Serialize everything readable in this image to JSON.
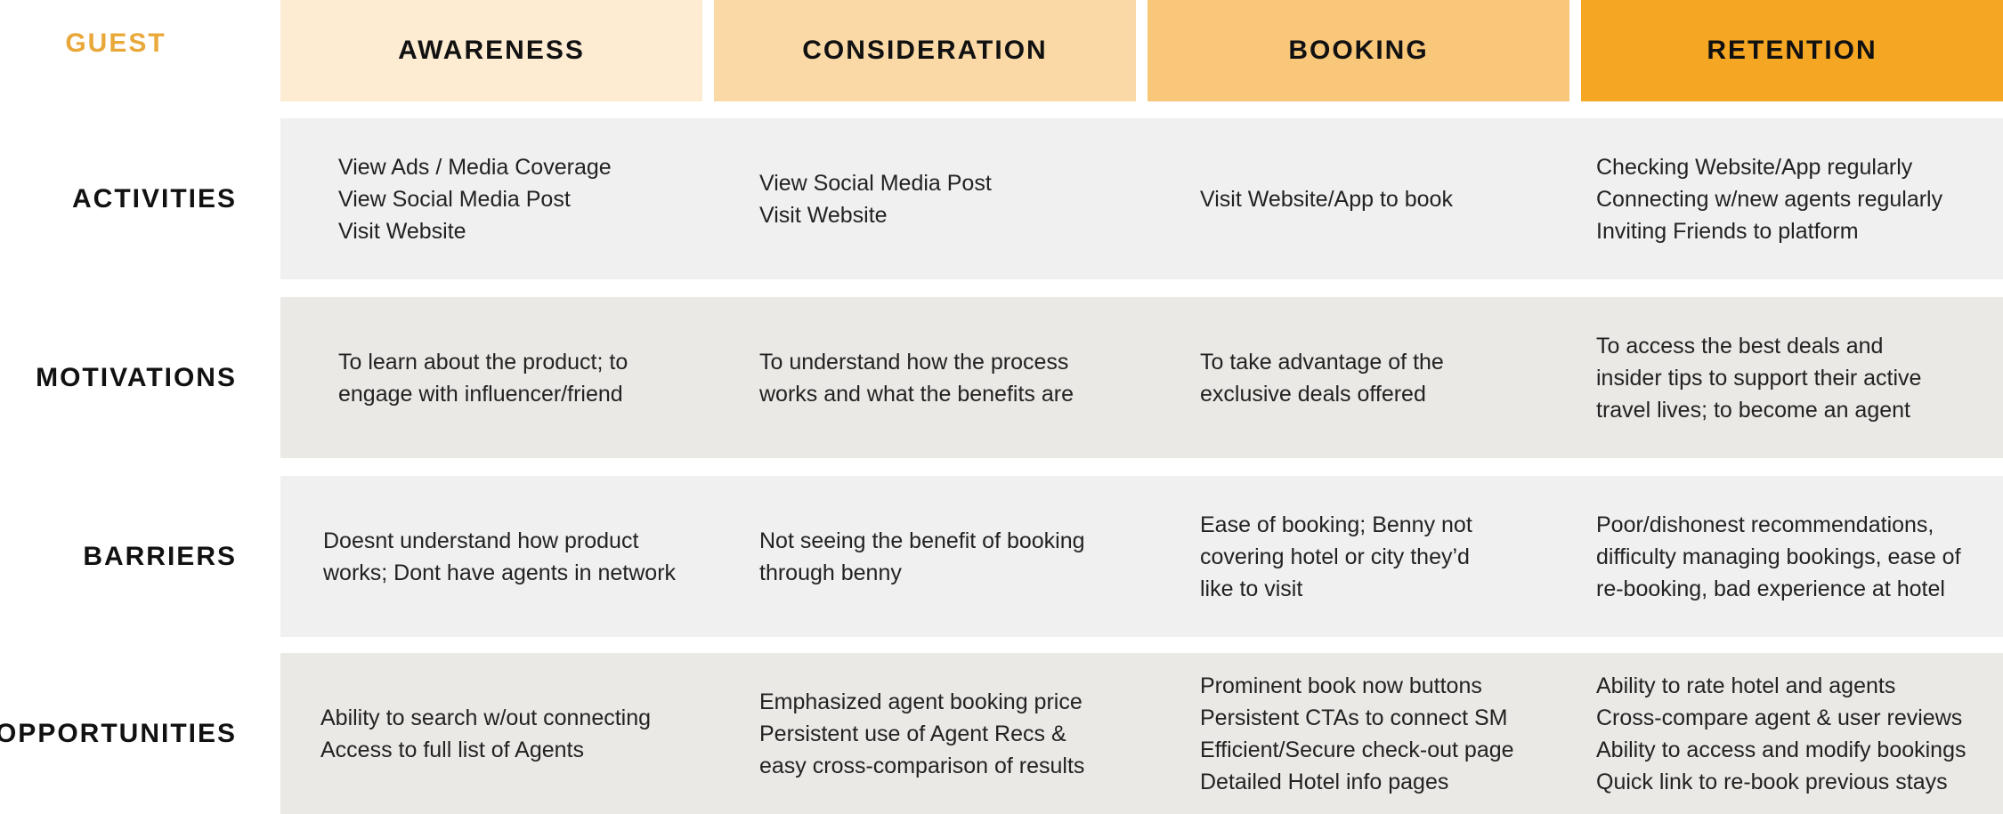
{
  "corner_label": "GUEST",
  "stages": [
    {
      "label": "AWARENESS",
      "color": "#fdebd2"
    },
    {
      "label": "CONSIDERATION",
      "color": "#fad9a6"
    },
    {
      "label": "BOOKING",
      "color": "#f8c77a"
    },
    {
      "label": "RETENTION",
      "color": "#f5a623"
    }
  ],
  "rows": [
    {
      "label": "ACTIVITIES",
      "band_color": "#f0f0f0",
      "cells": [
        [
          "View Ads / Media Coverage",
          "View Social Media Post",
          "Visit Website"
        ],
        [
          "View Social Media Post",
          "Visit Website"
        ],
        [
          "Visit Website/App to book"
        ],
        [
          "Checking Website/App regularly",
          "Connecting w/new agents regularly",
          "Inviting Friends to platform"
        ]
      ]
    },
    {
      "label": "MOTIVATIONS",
      "band_color": "#ebe9e6",
      "cells": [
        [
          "To learn about the product; to",
          "engage with influencer/friend"
        ],
        [
          "To understand how the process",
          "works and what the benefits are"
        ],
        [
          "To take advantage of the",
          "exclusive deals offered"
        ],
        [
          "To access the best deals and",
          "insider tips to support their active",
          "travel lives; to become an agent"
        ]
      ]
    },
    {
      "label": "BARRIERS",
      "band_color": "#f0f0f0",
      "cells": [
        [
          "Doesnt understand how product",
          "works; Dont have agents in network"
        ],
        [
          "Not seeing the benefit of booking",
          "through benny"
        ],
        [
          "Ease of booking; Benny not",
          "covering hotel or city they’d",
          "like to visit"
        ],
        [
          "Poor/dishonest recommendations,",
          "difficulty managing bookings, ease of",
          "re-booking, bad experience at hotel"
        ]
      ]
    },
    {
      "label": "OPPORTUNITIES",
      "band_color": "#ebe9e6",
      "cells": [
        [
          "Ability to search w/out connecting",
          "Access to full list of Agents"
        ],
        [
          "Emphasized agent booking price",
          "Persistent use of Agent Recs &",
          "easy cross-comparison of results"
        ],
        [
          "Prominent book now buttons",
          "Persistent CTAs to connect SM",
          "Efficient/Secure check-out page",
          "Detailed Hotel info pages"
        ],
        [
          "Ability to rate hotel and agents",
          "Cross-compare agent & user reviews",
          "Ability to access and modify bookings",
          "Quick link to re-book previous stays"
        ]
      ]
    }
  ]
}
